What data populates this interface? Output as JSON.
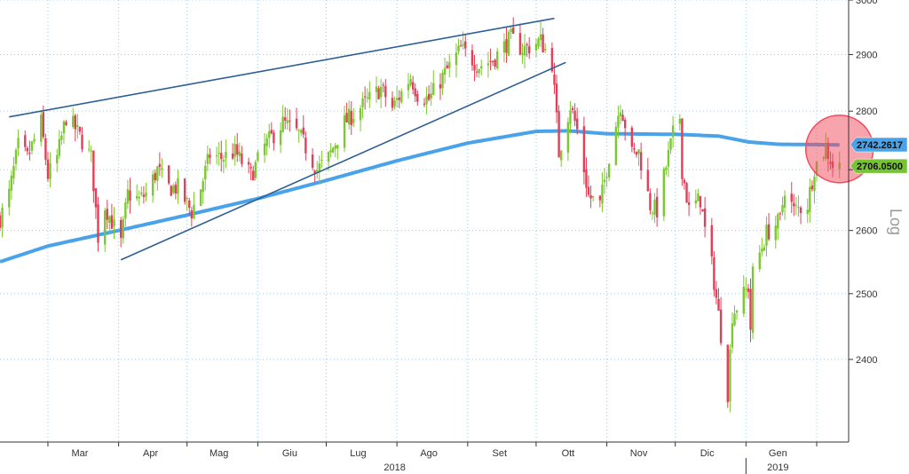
{
  "chart_data": {
    "type": "candlestick",
    "y_scale": "log",
    "scale_label": "Log",
    "ylim": [
      2280,
      3000
    ],
    "y_ticks": [
      2400,
      2500,
      2600,
      2700,
      2800,
      2900,
      3000
    ],
    "x_range": [
      "2018-02-08",
      "2019-02-15"
    ],
    "month_labels": [
      {
        "label": "Mar",
        "date": "2018-03-15"
      },
      {
        "label": "Apr",
        "date": "2018-04-15"
      },
      {
        "label": "Mag",
        "date": "2018-05-15"
      },
      {
        "label": "Giu",
        "date": "2018-06-15"
      },
      {
        "label": "Lug",
        "date": "2018-07-15"
      },
      {
        "label": "Ago",
        "date": "2018-08-15"
      },
      {
        "label": "Set",
        "date": "2018-09-15"
      },
      {
        "label": "Ott",
        "date": "2018-10-15"
      },
      {
        "label": "Nov",
        "date": "2018-11-15"
      },
      {
        "label": "Dic",
        "date": "2018-12-15"
      },
      {
        "label": "Gen",
        "date": "2019-01-15"
      }
    ],
    "month_starts": [
      "2018-03-01",
      "2018-04-01",
      "2018-05-01",
      "2018-06-01",
      "2018-07-01",
      "2018-08-01",
      "2018-09-01",
      "2018-10-01",
      "2018-11-01",
      "2018-12-01",
      "2019-01-01",
      "2019-02-01"
    ],
    "year_labels": [
      {
        "label": "2018",
        "date": "2018-07-31"
      },
      {
        "label": "2019",
        "date": "2019-01-15"
      }
    ],
    "year_divider": "2019-01-01",
    "price_anchors": [
      [
        "2018-02-08",
        2620
      ],
      [
        "2018-02-12",
        2660
      ],
      [
        "2018-02-16",
        2740
      ],
      [
        "2018-02-20",
        2720
      ],
      [
        "2018-02-26",
        2780
      ],
      [
        "2018-03-01",
        2690
      ],
      [
        "2018-03-05",
        2720
      ],
      [
        "2018-03-09",
        2790
      ],
      [
        "2018-03-13",
        2770
      ],
      [
        "2018-03-20",
        2720
      ],
      [
        "2018-03-23",
        2590
      ],
      [
        "2018-03-26",
        2640
      ],
      [
        "2018-04-02",
        2580
      ],
      [
        "2018-04-05",
        2660
      ],
      [
        "2018-04-10",
        2650
      ],
      [
        "2018-04-13",
        2660
      ],
      [
        "2018-04-18",
        2700
      ],
      [
        "2018-04-23",
        2670
      ],
      [
        "2018-04-27",
        2670
      ],
      [
        "2018-05-03",
        2630
      ],
      [
        "2018-05-07",
        2670
      ],
      [
        "2018-05-11",
        2725
      ],
      [
        "2018-05-16",
        2720
      ],
      [
        "2018-05-22",
        2730
      ],
      [
        "2018-05-29",
        2690
      ],
      [
        "2018-06-04",
        2740
      ],
      [
        "2018-06-12",
        2780
      ],
      [
        "2018-06-19",
        2760
      ],
      [
        "2018-06-27",
        2700
      ],
      [
        "2018-07-02",
        2720
      ],
      [
        "2018-07-09",
        2780
      ],
      [
        "2018-07-17",
        2810
      ],
      [
        "2018-07-25",
        2840
      ],
      [
        "2018-07-30",
        2805
      ],
      [
        "2018-08-07",
        2860
      ],
      [
        "2018-08-10",
        2830
      ],
      [
        "2018-08-15",
        2820
      ],
      [
        "2018-08-21",
        2860
      ],
      [
        "2018-08-29",
        2910
      ],
      [
        "2018-09-06",
        2880
      ],
      [
        "2018-09-12",
        2890
      ],
      [
        "2018-09-20",
        2930
      ],
      [
        "2018-09-25",
        2910
      ],
      [
        "2018-09-28",
        2914
      ],
      [
        "2018-10-03",
        2925
      ],
      [
        "2018-10-08",
        2885
      ],
      [
        "2018-10-10",
        2785
      ],
      [
        "2018-10-11",
        2728
      ],
      [
        "2018-10-16",
        2810
      ],
      [
        "2018-10-19",
        2767
      ],
      [
        "2018-10-24",
        2656
      ],
      [
        "2018-10-29",
        2641
      ],
      [
        "2018-11-02",
        2723
      ],
      [
        "2018-11-07",
        2813
      ],
      [
        "2018-11-12",
        2726
      ],
      [
        "2018-11-15",
        2730
      ],
      [
        "2018-11-20",
        2641
      ],
      [
        "2018-11-23",
        2633
      ],
      [
        "2018-11-30",
        2760
      ],
      [
        "2018-12-03",
        2790
      ],
      [
        "2018-12-04",
        2700
      ],
      [
        "2018-12-07",
        2633
      ],
      [
        "2018-12-12",
        2651
      ],
      [
        "2018-12-14",
        2600
      ],
      [
        "2018-12-17",
        2545
      ],
      [
        "2018-12-20",
        2467
      ],
      [
        "2018-12-24",
        2351
      ],
      [
        "2018-12-26",
        2468
      ],
      [
        "2019-01-02",
        2510
      ],
      [
        "2019-01-03",
        2447
      ],
      [
        "2019-01-04",
        2531
      ],
      [
        "2019-01-10",
        2596
      ],
      [
        "2019-01-16",
        2616
      ],
      [
        "2019-01-18",
        2670
      ],
      [
        "2019-01-22",
        2632
      ],
      [
        "2019-01-28",
        2643
      ],
      [
        "2019-01-31",
        2704
      ],
      [
        "2019-02-05",
        2737
      ],
      [
        "2019-02-08",
        2707
      ],
      [
        "2019-02-11",
        2706
      ]
    ],
    "moving_average_anchors": [
      [
        "2018-02-08",
        2550
      ],
      [
        "2018-03-01",
        2575
      ],
      [
        "2018-04-01",
        2600
      ],
      [
        "2018-05-01",
        2625
      ],
      [
        "2018-06-01",
        2652
      ],
      [
        "2018-07-01",
        2682
      ],
      [
        "2018-08-01",
        2715
      ],
      [
        "2018-09-01",
        2745
      ],
      [
        "2018-10-01",
        2765
      ],
      [
        "2018-10-15",
        2766
      ],
      [
        "2018-11-01",
        2761
      ],
      [
        "2018-12-01",
        2760
      ],
      [
        "2018-12-20",
        2757
      ],
      [
        "2019-01-02",
        2747
      ],
      [
        "2019-01-15",
        2743
      ],
      [
        "2019-02-11",
        2742
      ]
    ],
    "trendlines": [
      {
        "name": "upper-channel-line",
        "from": [
          "2018-02-12",
          2790
        ],
        "to": [
          "2018-10-09",
          2966
        ]
      },
      {
        "name": "lower-channel-line",
        "from": [
          "2018-04-02",
          2553
        ],
        "to": [
          "2018-10-14",
          2886
        ]
      }
    ],
    "highlight_circle": {
      "date": "2019-02-11",
      "value": 2735
    },
    "value_tags": [
      {
        "text": "2742.2617",
        "value": 2742.2617,
        "fill": "#4aa3e8"
      },
      {
        "text": "2706.0500",
        "value": 2706.05,
        "fill": "#76c436"
      }
    ],
    "colors": {
      "up": "#7cc832",
      "down": "#e2405a",
      "moving_average": "#4aa3e8",
      "trendline": "#2d5f97",
      "grid": "#a8c8e8",
      "circle": "#f24a5c"
    },
    "grid": true
  }
}
